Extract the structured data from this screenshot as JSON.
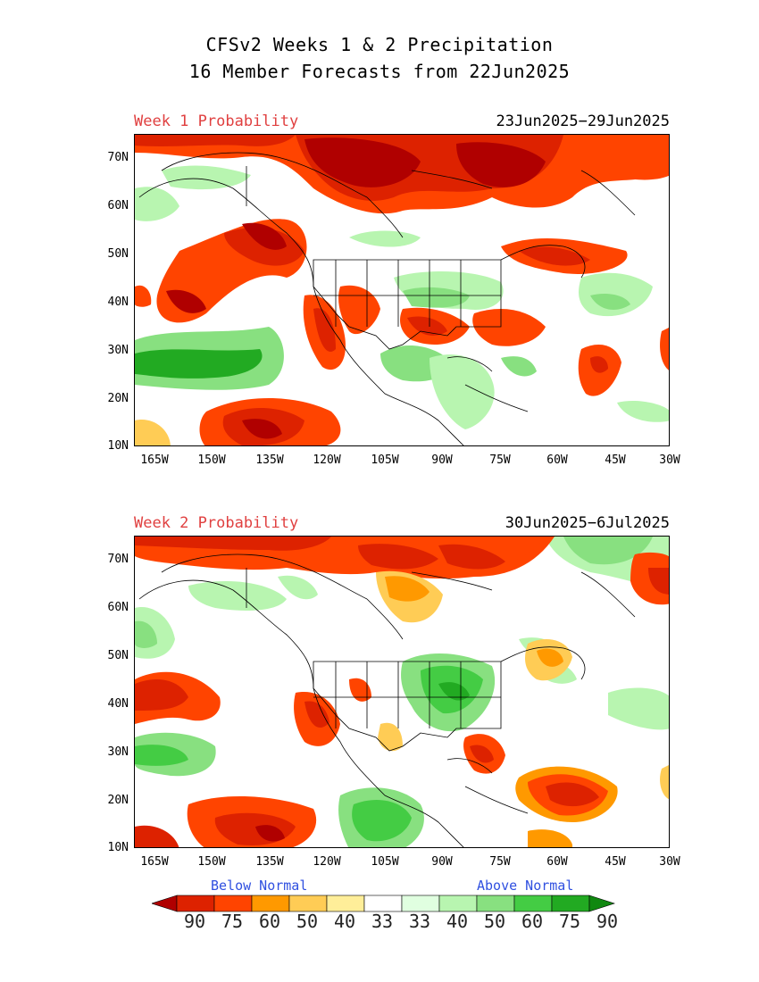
{
  "title_line1": "CFSv2 Weeks 1 & 2 Precipitation",
  "title_line2": "16 Member Forecasts from 22Jun2025",
  "panels": [
    {
      "week_label": "Week 1 Probability",
      "date_range": "23Jun2025−29Jun2025"
    },
    {
      "week_label": "Week 2 Probability",
      "date_range": "30Jun2025−6Jul2025"
    }
  ],
  "y_ticks": [
    "70N",
    "60N",
    "50N",
    "40N",
    "30N",
    "20N",
    "10N"
  ],
  "x_ticks": [
    "165W",
    "150W",
    "135W",
    "120W",
    "105W",
    "90W",
    "75W",
    "60W",
    "45W",
    "30W"
  ],
  "legend": {
    "below_label": "Below Normal",
    "above_label": "Above Normal",
    "values": [
      "90",
      "75",
      "60",
      "50",
      "40",
      "33",
      "33",
      "40",
      "50",
      "60",
      "75",
      "90"
    ],
    "colors": [
      "#b00000",
      "#dd2200",
      "#ff4400",
      "#ff9900",
      "#ffcc55",
      "#ffee99",
      "#ffffff",
      "#e0ffe0",
      "#b8f5b0",
      "#88e080",
      "#44cc44",
      "#22aa22",
      "#108810"
    ]
  }
}
